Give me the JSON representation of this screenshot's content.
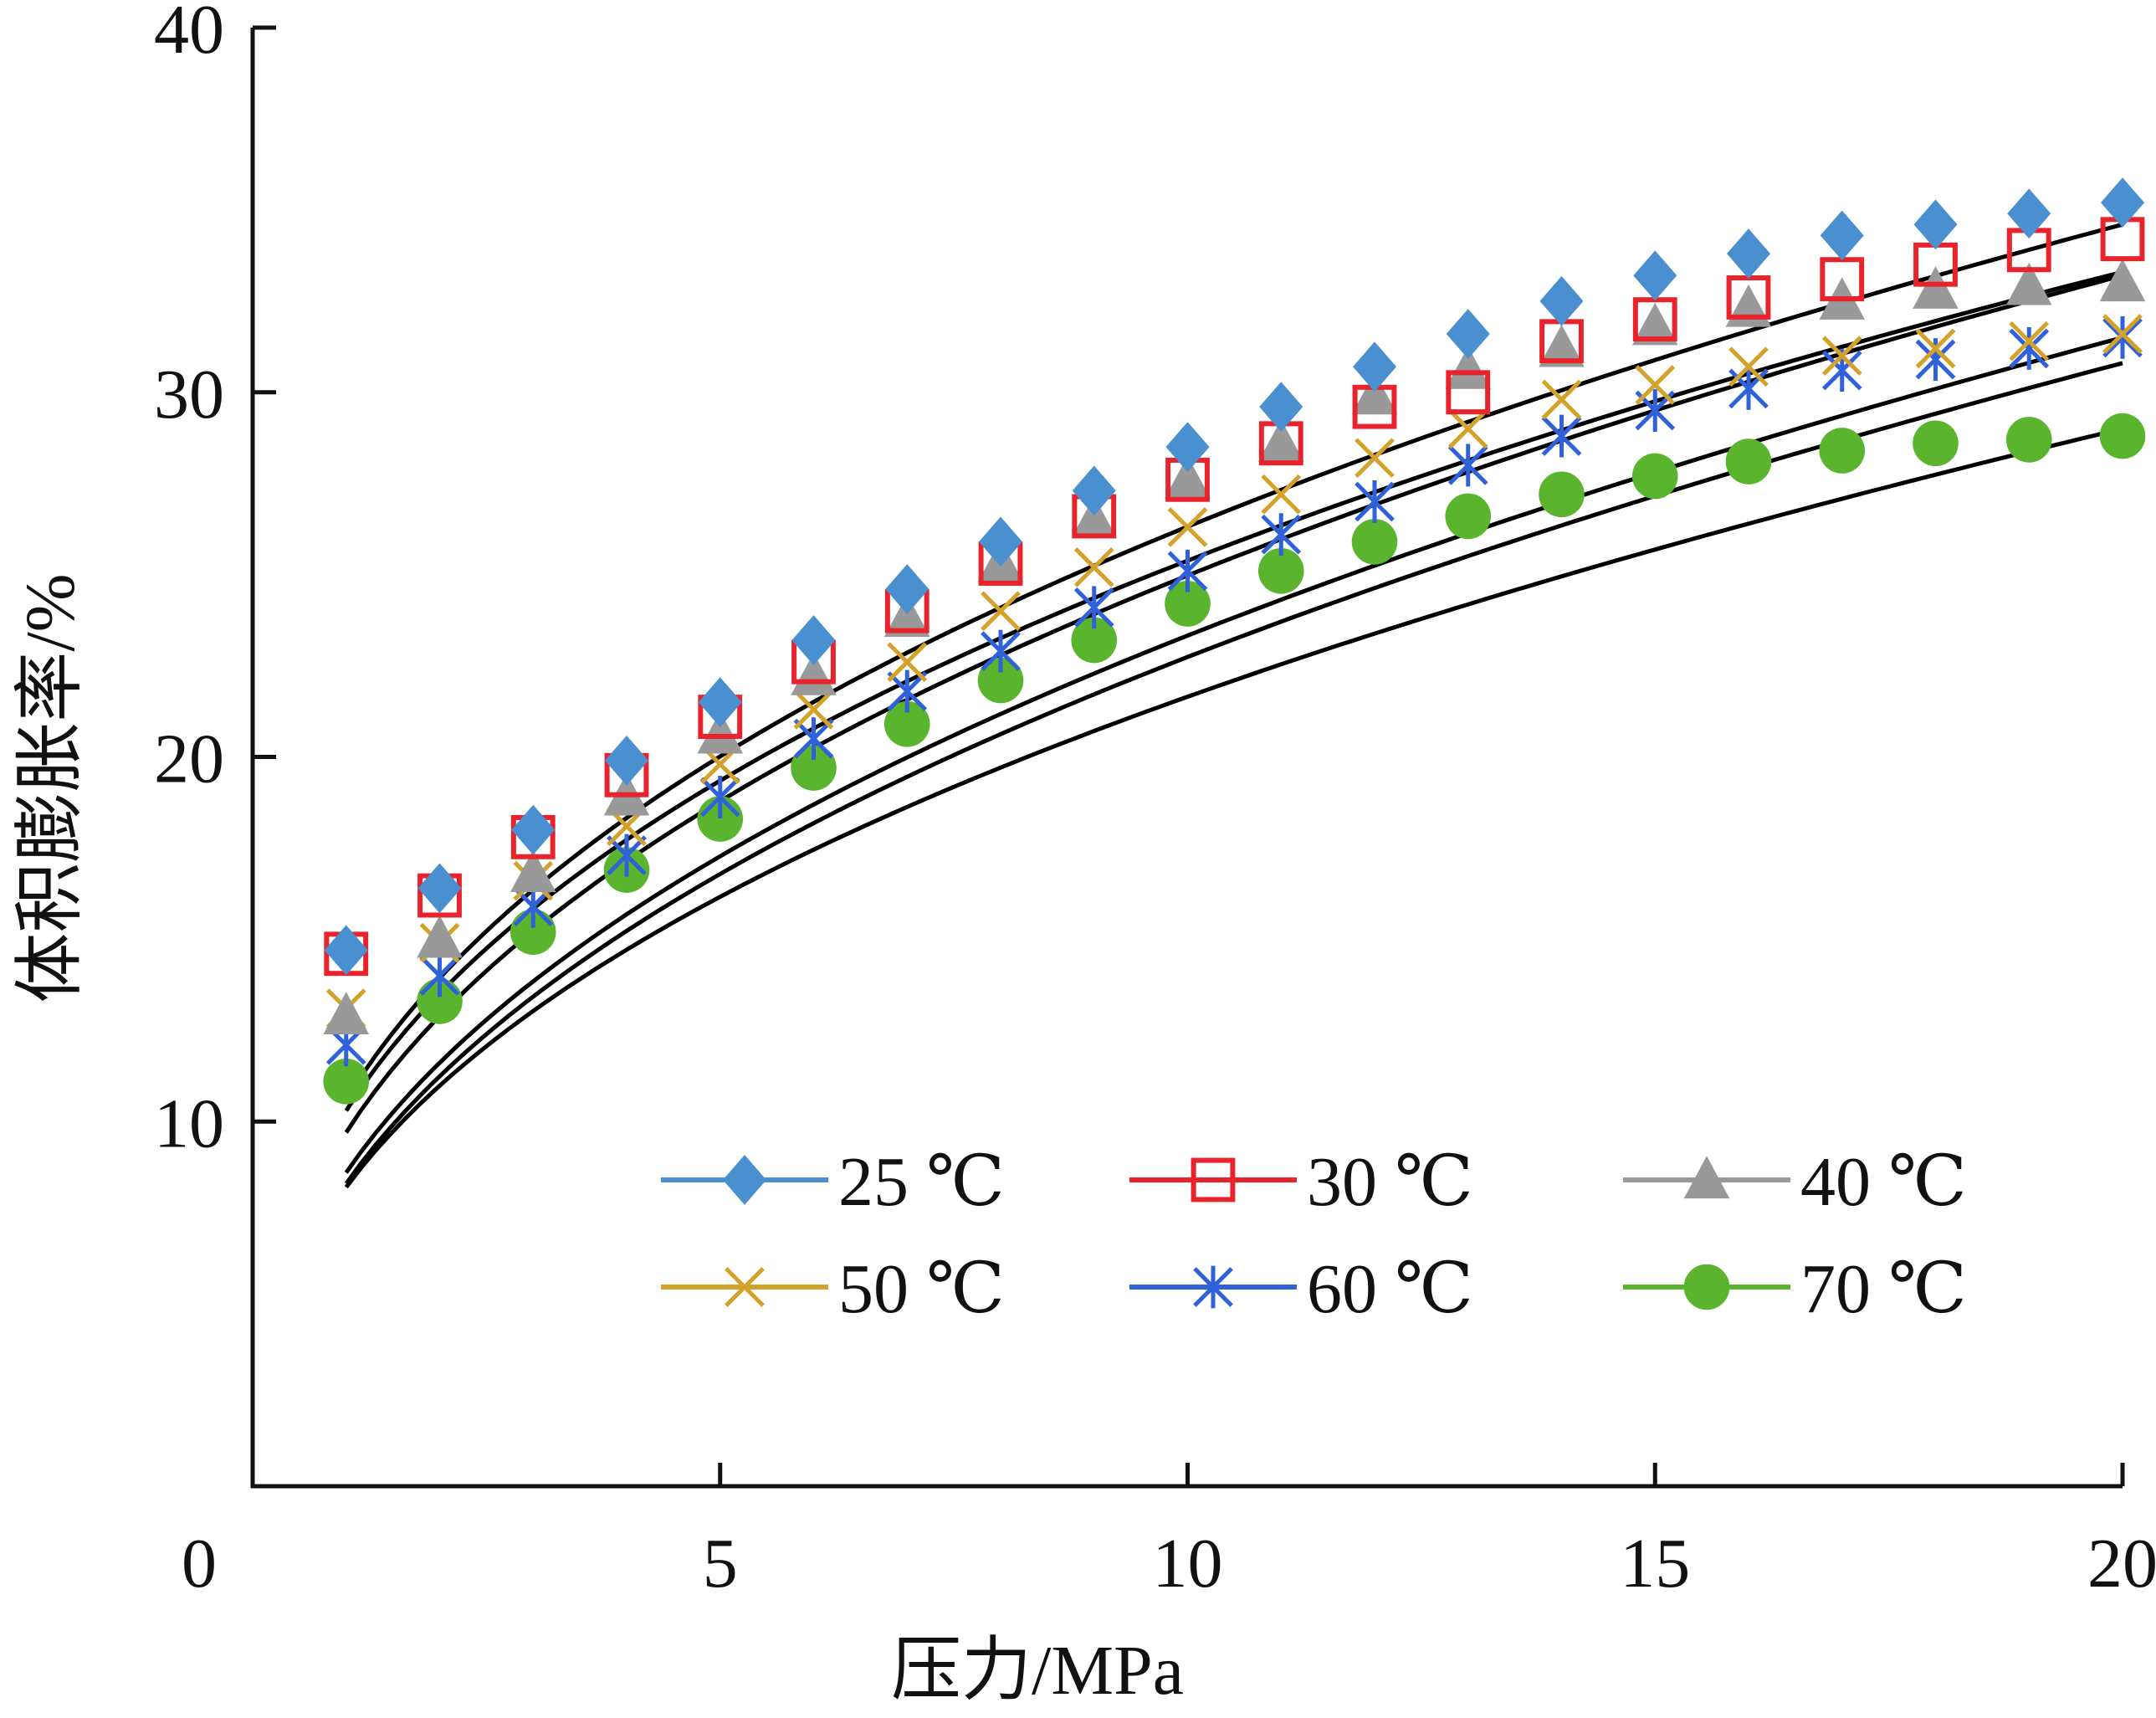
{
  "chart_data": {
    "type": "scatter",
    "title": "",
    "xlabel": "压力/MPa",
    "ylabel": "体积膨胀率/%",
    "xlim": [
      0,
      20
    ],
    "ylim": [
      0,
      40
    ],
    "x_ticks": [
      "0",
      "5",
      "10",
      "15",
      "20"
    ],
    "y_ticks": [
      "10",
      "20",
      "30",
      "40"
    ],
    "grid": false,
    "legend_position": "bottom-right",
    "x": [
      1,
      2,
      3,
      4,
      5,
      6,
      7,
      8,
      9,
      10,
      11,
      12,
      13,
      14,
      15,
      16,
      17,
      18,
      19,
      20
    ],
    "series": [
      {
        "name": "25 ℃",
        "marker": "diamond",
        "color": "#4a90d0",
        "values": [
          14.7,
          16.4,
          18.0,
          19.9,
          21.5,
          23.2,
          24.6,
          25.9,
          27.3,
          28.5,
          29.6,
          30.7,
          31.6,
          32.5,
          33.2,
          33.8,
          34.3,
          34.6,
          34.9,
          35.2
        ],
        "fit": [
          10.6,
          34.6
        ]
      },
      {
        "name": "30 ℃",
        "marker": "square-open",
        "color": "#e8232b",
        "values": [
          14.6,
          16.2,
          17.8,
          19.5,
          21.1,
          22.6,
          24.0,
          25.3,
          26.6,
          27.6,
          28.6,
          29.6,
          30.0,
          31.4,
          32.0,
          32.6,
          33.1,
          33.5,
          33.9,
          34.2
        ],
        "fit": [
          10.3,
          33.3
        ]
      },
      {
        "name": "40 ℃",
        "marker": "triangle",
        "color": "#999999",
        "values": [
          12.9,
          15.0,
          16.8,
          18.9,
          20.6,
          22.2,
          23.8,
          25.3,
          26.5,
          27.6,
          28.6,
          29.9,
          30.6,
          31.2,
          31.8,
          32.3,
          32.5,
          32.8,
          32.9,
          33.0
        ],
        "fit": [
          9.7,
          33.2
        ]
      },
      {
        "name": "50 ℃",
        "marker": "x",
        "color": "#d4a22a",
        "values": [
          13.1,
          14.9,
          16.6,
          18.1,
          19.8,
          21.3,
          22.6,
          24.0,
          25.2,
          26.3,
          27.2,
          28.2,
          29.0,
          29.8,
          30.2,
          30.7,
          31.0,
          31.2,
          31.4,
          31.6
        ],
        "fit": [
          8.6,
          31.5
        ]
      },
      {
        "name": "60 ℃",
        "marker": "asterisk",
        "color": "#2f62d8",
        "values": [
          12.1,
          14.0,
          15.9,
          17.3,
          18.9,
          20.5,
          21.8,
          22.9,
          24.1,
          25.1,
          26.1,
          27.0,
          28.0,
          28.8,
          29.5,
          30.1,
          30.6,
          30.9,
          31.2,
          31.5
        ],
        "fit": [
          8.3,
          30.8
        ]
      },
      {
        "name": "70 ℃",
        "marker": "circle",
        "color": "#5ab42d",
        "values": [
          11.1,
          13.3,
          15.2,
          16.9,
          18.3,
          19.7,
          20.9,
          22.1,
          23.2,
          24.2,
          25.1,
          25.9,
          26.6,
          27.2,
          27.7,
          28.1,
          28.4,
          28.6,
          28.7,
          28.8
        ],
        "fit": [
          8.2,
          29.0
        ]
      }
    ]
  }
}
